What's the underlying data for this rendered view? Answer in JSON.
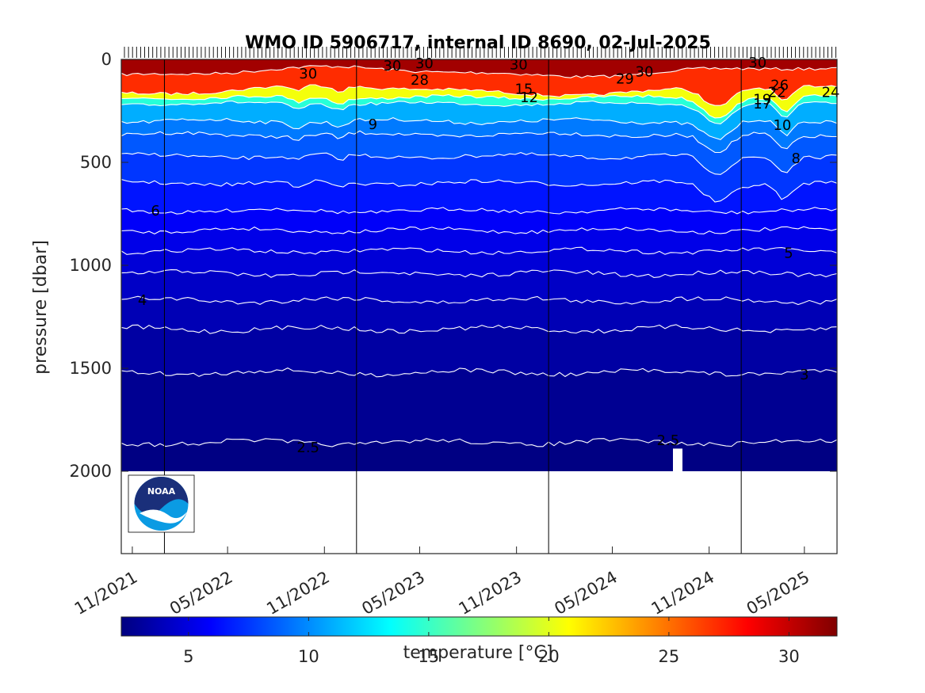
{
  "chart_data": {
    "type": "heatmap",
    "title": "WMO ID 5906717, internal ID 8690, 02-Jul-2025",
    "ylabel": "pressure [dbar]",
    "ylim": [
      0,
      2400
    ],
    "y_ticks": [
      0,
      500,
      1000,
      1500,
      2000
    ],
    "y_tick_labels": [
      "0",
      "500",
      "1000",
      "1500",
      "2000"
    ],
    "y_reversed": true,
    "x_tick_labels": [
      "11/2021",
      "05/2022",
      "11/2022",
      "05/2023",
      "11/2023",
      "05/2024",
      "11/2024",
      "05/2025"
    ],
    "x_tick_dates": [
      "2021-11-01",
      "2022-05-01",
      "2022-11-01",
      "2023-05-01",
      "2023-11-01",
      "2024-05-01",
      "2024-11-01",
      "2025-05-01"
    ],
    "xlim": [
      "2021-10-11",
      "2025-07-02"
    ],
    "year_boundaries": [
      "2022-01-01",
      "2023-01-01",
      "2024-01-01",
      "2025-01-01"
    ],
    "data_end_pressure": 2000,
    "colormap": "jet",
    "colorbar": {
      "label": "temperature [°C]",
      "range": [
        2.2,
        32
      ],
      "ticks": [
        5,
        10,
        15,
        20,
        25,
        30
      ],
      "tick_labels": [
        "5",
        "10",
        "15",
        "20",
        "25",
        "30"
      ]
    },
    "contour_levels": [
      2.5,
      3,
      4,
      5,
      6,
      7,
      8,
      9,
      10,
      11,
      12,
      13,
      14,
      15,
      16,
      17,
      18,
      19,
      20,
      21,
      22,
      23,
      24,
      25,
      26,
      27,
      28,
      29,
      30
    ],
    "mean_isotherm_depths": [
      {
        "temperature": 30,
        "pressure": 60
      },
      {
        "temperature": 24,
        "pressure": 150
      },
      {
        "temperature": 17,
        "pressure": 185
      },
      {
        "temperature": 12,
        "pressure": 215
      },
      {
        "temperature": 10,
        "pressure": 300
      },
      {
        "temperature": 9,
        "pressure": 365
      },
      {
        "temperature": 8,
        "pressure": 470
      },
      {
        "temperature": 7,
        "pressure": 600
      },
      {
        "temperature": 6,
        "pressure": 735
      },
      {
        "temperature": 5.5,
        "pressure": 830
      },
      {
        "temperature": 5,
        "pressure": 930
      },
      {
        "temperature": 4.5,
        "pressure": 1040
      },
      {
        "temperature": 4,
        "pressure": 1170
      },
      {
        "temperature": 3.5,
        "pressure": 1310
      },
      {
        "temperature": 3,
        "pressure": 1520
      },
      {
        "temperature": 2.5,
        "pressure": 1860
      }
    ],
    "contour_labels": [
      {
        "text": "30",
        "date": "2022-10-01",
        "pressure": 70
      },
      {
        "text": "30",
        "date": "2023-03-10",
        "pressure": 30
      },
      {
        "text": "30",
        "date": "2023-05-10",
        "pressure": 20
      },
      {
        "text": "28",
        "date": "2023-05-01",
        "pressure": 100
      },
      {
        "text": "30",
        "date": "2023-11-05",
        "pressure": 25
      },
      {
        "text": "15",
        "date": "2023-11-15",
        "pressure": 145
      },
      {
        "text": "12",
        "date": "2023-11-25",
        "pressure": 185
      },
      {
        "text": "9",
        "date": "2023-02-01",
        "pressure": 315
      },
      {
        "text": "29",
        "date": "2024-05-25",
        "pressure": 95
      },
      {
        "text": "30",
        "date": "2024-07-01",
        "pressure": 60
      },
      {
        "text": "30",
        "date": "2025-02-01",
        "pressure": 15
      },
      {
        "text": "26",
        "date": "2025-03-15",
        "pressure": 125
      },
      {
        "text": "22",
        "date": "2025-03-10",
        "pressure": 160
      },
      {
        "text": "19",
        "date": "2025-02-10",
        "pressure": 195
      },
      {
        "text": "17",
        "date": "2025-02-10",
        "pressure": 215
      },
      {
        "text": "24",
        "date": "2025-06-20",
        "pressure": 160
      },
      {
        "text": "10",
        "date": "2025-03-20",
        "pressure": 320
      },
      {
        "text": "8",
        "date": "2025-04-15",
        "pressure": 480
      },
      {
        "text": "6",
        "date": "2021-12-15",
        "pressure": 735
      },
      {
        "text": "5",
        "date": "2025-04-01",
        "pressure": 940
      },
      {
        "text": "4",
        "date": "2021-11-20",
        "pressure": 1170
      },
      {
        "text": "3",
        "date": "2025-05-01",
        "pressure": 1530
      },
      {
        "text": "2.5",
        "date": "2022-10-01",
        "pressure": 1885
      },
      {
        "text": "2.5",
        "date": "2024-08-15",
        "pressure": 1850
      }
    ],
    "grid": false,
    "legend": "colorbar-bottom"
  },
  "logo": {
    "text": "NOAA"
  }
}
